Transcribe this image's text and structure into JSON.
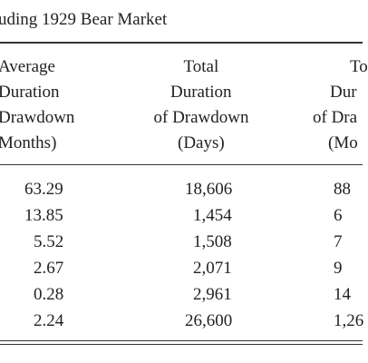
{
  "title": "uding 1929 Bear Market",
  "table": {
    "header": [
      [
        "Average",
        "Duration",
        "Drawdown",
        "Months)"
      ],
      [
        "Total",
        "Duration",
        "of Drawdown",
        "(Days)"
      ],
      [
        "To",
        "Dur",
        "of Dra",
        "(Mo"
      ]
    ],
    "rows": [
      [
        "63.29",
        "18,606",
        "88"
      ],
      [
        "13.85",
        "1,454",
        "6"
      ],
      [
        "5.52",
        "1,508",
        "7"
      ],
      [
        "2.67",
        "2,071",
        "9"
      ],
      [
        "0.28",
        "2,961",
        "14"
      ],
      [
        "2.24",
        "26,600",
        "1,26"
      ]
    ]
  }
}
